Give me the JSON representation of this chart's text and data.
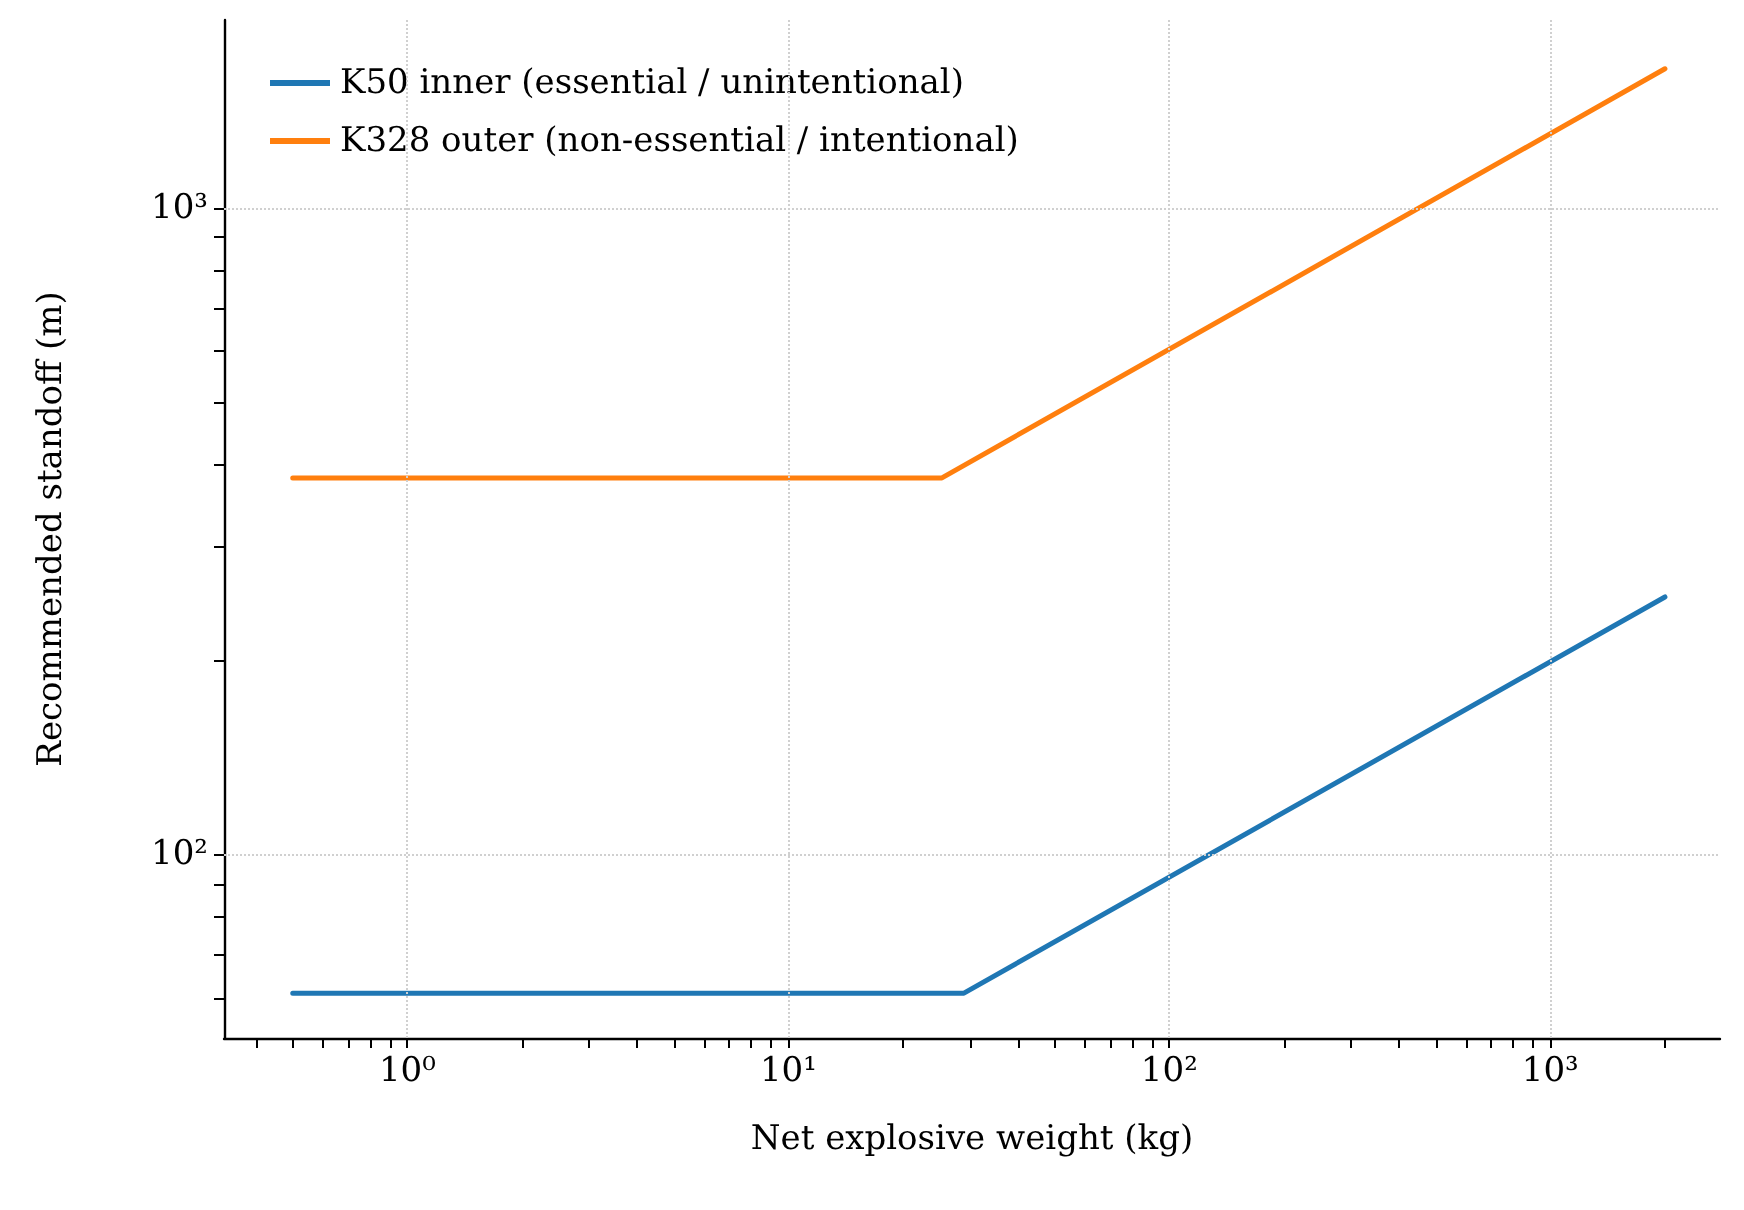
{
  "chart_data": {
    "type": "line",
    "xlabel": "Net explosive weight (kg)",
    "ylabel": "Recommended standoff (m)",
    "log": "xy",
    "grid": true,
    "legend": "top left",
    "line_style": "solid",
    "marker": "none",
    "xlim": [
      0.33,
      2790
    ],
    "ylim": [
      52,
      1950
    ],
    "xticks": [
      {
        "value": 0.4,
        "label": null
      },
      {
        "value": 0.5,
        "label": null
      },
      {
        "value": 0.6,
        "label": null
      },
      {
        "value": 0.7,
        "label": null
      },
      {
        "value": 0.8,
        "label": null
      },
      {
        "value": 0.9,
        "label": null
      },
      {
        "value": 1,
        "label": "10⁰"
      },
      {
        "value": 2,
        "label": null
      },
      {
        "value": 3,
        "label": null
      },
      {
        "value": 4,
        "label": null
      },
      {
        "value": 5,
        "label": null
      },
      {
        "value": 6,
        "label": null
      },
      {
        "value": 7,
        "label": null
      },
      {
        "value": 8,
        "label": null
      },
      {
        "value": 9,
        "label": null
      },
      {
        "value": 10,
        "label": "10¹"
      },
      {
        "value": 20,
        "label": null
      },
      {
        "value": 30,
        "label": null
      },
      {
        "value": 40,
        "label": null
      },
      {
        "value": 50,
        "label": null
      },
      {
        "value": 60,
        "label": null
      },
      {
        "value": 70,
        "label": null
      },
      {
        "value": 80,
        "label": null
      },
      {
        "value": 90,
        "label": null
      },
      {
        "value": 100,
        "label": "10²"
      },
      {
        "value": 200,
        "label": null
      },
      {
        "value": 300,
        "label": null
      },
      {
        "value": 400,
        "label": null
      },
      {
        "value": 500,
        "label": null
      },
      {
        "value": 600,
        "label": null
      },
      {
        "value": 700,
        "label": null
      },
      {
        "value": 800,
        "label": null
      },
      {
        "value": 900,
        "label": null
      },
      {
        "value": 1000,
        "label": "10³"
      },
      {
        "value": 2000,
        "label": null
      }
    ],
    "yticks": [
      {
        "value": 60,
        "label": null
      },
      {
        "value": 70,
        "label": null
      },
      {
        "value": 80,
        "label": null
      },
      {
        "value": 90,
        "label": null
      },
      {
        "value": 100,
        "label": "10²"
      },
      {
        "value": 200,
        "label": null
      },
      {
        "value": 300,
        "label": null
      },
      {
        "value": 400,
        "label": null
      },
      {
        "value": 500,
        "label": null
      },
      {
        "value": 600,
        "label": null
      },
      {
        "value": 700,
        "label": null
      },
      {
        "value": 800,
        "label": null
      },
      {
        "value": 900,
        "label": null
      },
      {
        "value": 1000,
        "label": "10³"
      }
    ],
    "series": [
      {
        "name": "K50 inner (essential / unintentional)",
        "color": "#1f77b4",
        "x": [
          0.5,
          28.9,
          2000
        ],
        "values": [
          61,
          61,
          250
        ]
      },
      {
        "name": "K328 outer (non-essential / intentional)",
        "color": "#ff7f0e",
        "x": [
          0.5,
          25.3,
          2000
        ],
        "values": [
          382,
          382,
          1639
        ]
      }
    ]
  }
}
